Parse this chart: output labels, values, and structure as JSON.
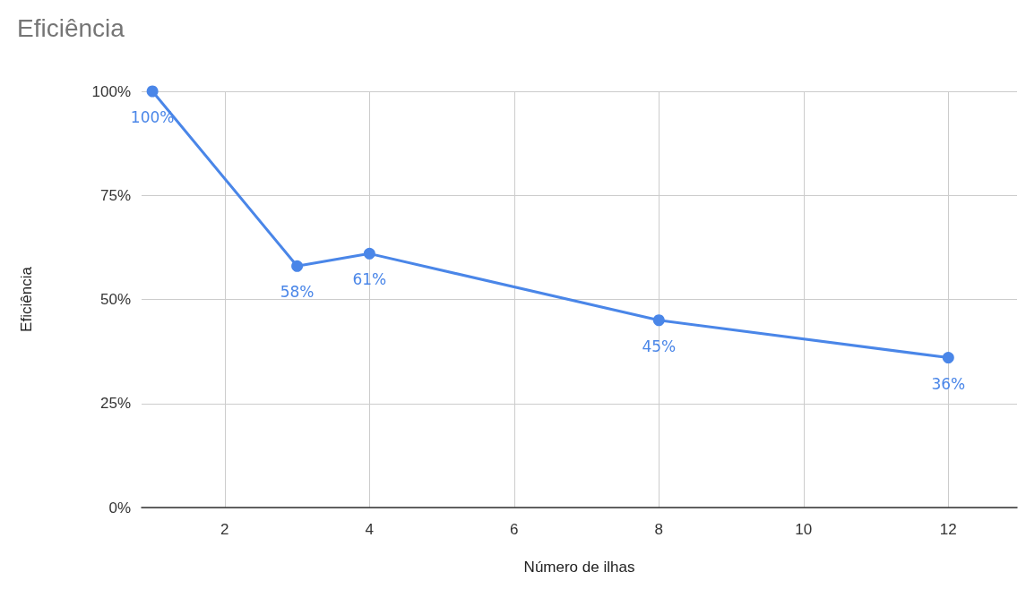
{
  "chart_data": {
    "type": "line",
    "title": "Eficiência",
    "xlabel": "Número de ilhas",
    "ylabel": "Eficiência",
    "x": [
      1,
      3,
      4,
      8,
      12
    ],
    "series": [
      {
        "color": "#4a86e8",
        "values": [
          100,
          58,
          61,
          45,
          36
        ],
        "value_labels": [
          "100%",
          "58%",
          "61%",
          "45%",
          "36%"
        ]
      }
    ],
    "xlim": [
      0.85,
      12.95
    ],
    "xticks": [
      2,
      4,
      6,
      8,
      10,
      12
    ],
    "ylim": [
      0,
      100
    ],
    "yticks": [
      {
        "value": 0,
        "label": "0%"
      },
      {
        "value": 25,
        "label": "25%"
      },
      {
        "value": 50,
        "label": "50%"
      },
      {
        "value": 75,
        "label": "75%"
      },
      {
        "value": 100,
        "label": "100%"
      }
    ],
    "grid": true,
    "marker": "circle",
    "line_style": "solid"
  }
}
